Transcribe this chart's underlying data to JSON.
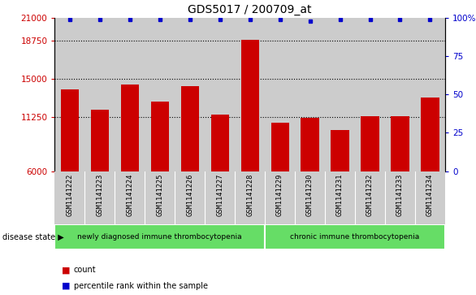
{
  "title": "GDS5017 / 200709_at",
  "samples": [
    "GSM1141222",
    "GSM1141223",
    "GSM1141224",
    "GSM1141225",
    "GSM1141226",
    "GSM1141227",
    "GSM1141228",
    "GSM1141229",
    "GSM1141230",
    "GSM1141231",
    "GSM1141232",
    "GSM1141233",
    "GSM1141234"
  ],
  "counts": [
    14000,
    12000,
    14500,
    12800,
    14300,
    11500,
    18800,
    10700,
    11200,
    10000,
    11400,
    11400,
    13200
  ],
  "percentile_ranks": [
    99,
    99,
    99,
    99,
    99,
    99,
    99,
    99,
    98,
    99,
    99,
    99,
    99
  ],
  "bar_color": "#cc0000",
  "dot_color": "#0000cc",
  "ylim_left": [
    6000,
    21000
  ],
  "yticks_left": [
    6000,
    11250,
    15000,
    18750,
    21000
  ],
  "yticks_right": [
    0,
    25,
    50,
    75,
    100
  ],
  "grid_lines": [
    11250,
    15000,
    18750
  ],
  "group1_label": "newly diagnosed immune thrombocytopenia",
  "group2_label": "chronic immune thrombocytopenia",
  "group1_count": 7,
  "group2_count": 6,
  "disease_state_label": "disease state",
  "legend_count_label": "count",
  "legend_percentile_label": "percentile rank within the sample",
  "group_bg_color": "#66dd66",
  "sample_bg_color": "#cccccc",
  "title_fontsize": 10,
  "tick_fontsize": 7.5,
  "label_fontsize": 7
}
